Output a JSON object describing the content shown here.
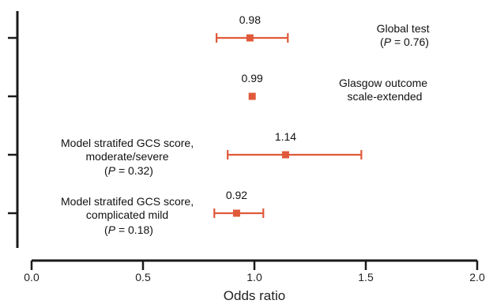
{
  "chart_data": {
    "type": "scatter",
    "subtype": "forest-plot",
    "xlabel": "Odds ratio",
    "xlim": [
      0.0,
      2.0
    ],
    "xticks": [
      "0.0",
      "0.5",
      "1.0",
      "1.5",
      "2.0"
    ],
    "grid": false,
    "colors": {
      "marker": "#e05a3a",
      "axis": "#1a1a1a"
    },
    "rows": [
      {
        "estimate": 0.98,
        "ci_low": 0.83,
        "ci_high": 1.15,
        "value_label": "0.98",
        "annotation": [
          "Global test",
          "(P = 0.76)"
        ]
      },
      {
        "estimate": 0.99,
        "ci_low": 0.99,
        "ci_high": 0.99,
        "value_label": "0.99",
        "annotation": [
          "Glasgow outcome",
          "scale-extended"
        ]
      },
      {
        "estimate": 1.14,
        "ci_low": 0.88,
        "ci_high": 1.48,
        "value_label": "1.14",
        "annotation": [
          "Model stratifed GCS score,",
          "moderate/severe",
          "(P = 0.32)"
        ]
      },
      {
        "estimate": 0.92,
        "ci_low": 0.82,
        "ci_high": 1.04,
        "value_label": "0.92",
        "annotation": [
          "Model stratifed GCS score,",
          "complicated mild",
          "(P = 0.18)"
        ]
      }
    ]
  }
}
